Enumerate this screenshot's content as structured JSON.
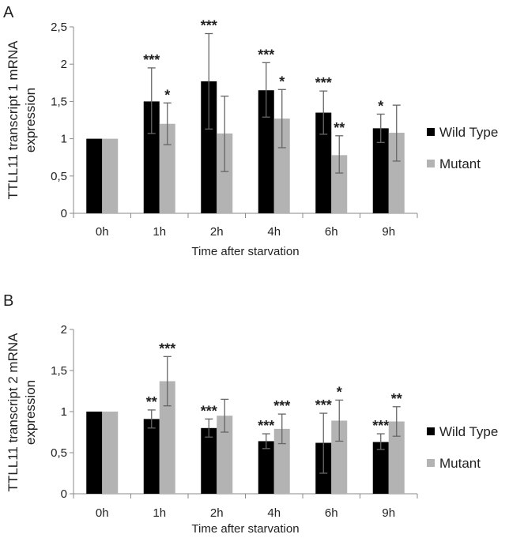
{
  "chart_data": [
    {
      "type": "bar",
      "panel": "A",
      "categories": [
        "0h",
        "1h",
        "2h",
        "4h",
        "6h",
        "9h"
      ],
      "ylabel_lines": [
        "TTLL11 transcript 1 mRNA",
        "expression"
      ],
      "xlabel": "Time after starvation",
      "ylim": [
        0,
        2.5
      ],
      "yticks": [
        "0",
        "0,5",
        "1",
        "1,5",
        "2",
        "2,5"
      ],
      "ytick_values": [
        0,
        0.5,
        1,
        1.5,
        2,
        2.5
      ],
      "legend_position": "right",
      "grid": false,
      "series": [
        {
          "name": "Wild Type",
          "color": "#000000",
          "values": [
            1.0,
            1.5,
            1.77,
            1.65,
            1.35,
            1.14
          ],
          "error_low": [
            null,
            1.07,
            1.13,
            1.29,
            1.06,
            0.95
          ],
          "error_high": [
            null,
            1.95,
            2.41,
            2.02,
            1.64,
            1.33
          ],
          "significance": [
            "",
            "***",
            "***",
            "***",
            "***",
            "*"
          ]
        },
        {
          "name": "Mutant",
          "color": "#b3b3b3",
          "values": [
            1.0,
            1.2,
            1.07,
            1.27,
            0.78,
            1.08
          ],
          "error_low": [
            null,
            0.92,
            0.56,
            0.88,
            0.54,
            0.7
          ],
          "error_high": [
            null,
            1.48,
            1.57,
            1.66,
            1.04,
            1.45
          ],
          "significance": [
            "",
            "*",
            "",
            "*",
            "**",
            ""
          ]
        }
      ]
    },
    {
      "type": "bar",
      "panel": "B",
      "categories": [
        "0h",
        "1h",
        "2h",
        "4h",
        "6h",
        "9h"
      ],
      "ylabel_lines": [
        "TTLL11 transcript 2 mRNA",
        "expression"
      ],
      "xlabel": "Time after starvation",
      "ylim": [
        0,
        2
      ],
      "yticks": [
        "0",
        "0,5",
        "1",
        "1,5",
        "2"
      ],
      "ytick_values": [
        0,
        0.5,
        1,
        1.5,
        2
      ],
      "legend_position": "right",
      "grid": false,
      "series": [
        {
          "name": "Wild Type",
          "color": "#000000",
          "values": [
            1.0,
            0.91,
            0.8,
            0.64,
            0.62,
            0.63
          ],
          "error_low": [
            null,
            0.8,
            0.69,
            0.55,
            0.25,
            0.54
          ],
          "error_high": [
            null,
            1.02,
            0.91,
            0.73,
            0.98,
            0.73
          ],
          "significance": [
            "",
            "**",
            "***",
            "***",
            "***",
            "***"
          ]
        },
        {
          "name": "Mutant",
          "color": "#b3b3b3",
          "values": [
            1.0,
            1.37,
            0.95,
            0.79,
            0.89,
            0.88
          ],
          "error_low": [
            null,
            1.07,
            0.75,
            0.61,
            0.64,
            0.7
          ],
          "error_high": [
            null,
            1.67,
            1.15,
            0.97,
            1.14,
            1.06
          ],
          "significance": [
            "",
            "***",
            "",
            "***",
            "*",
            "**"
          ]
        }
      ]
    }
  ]
}
